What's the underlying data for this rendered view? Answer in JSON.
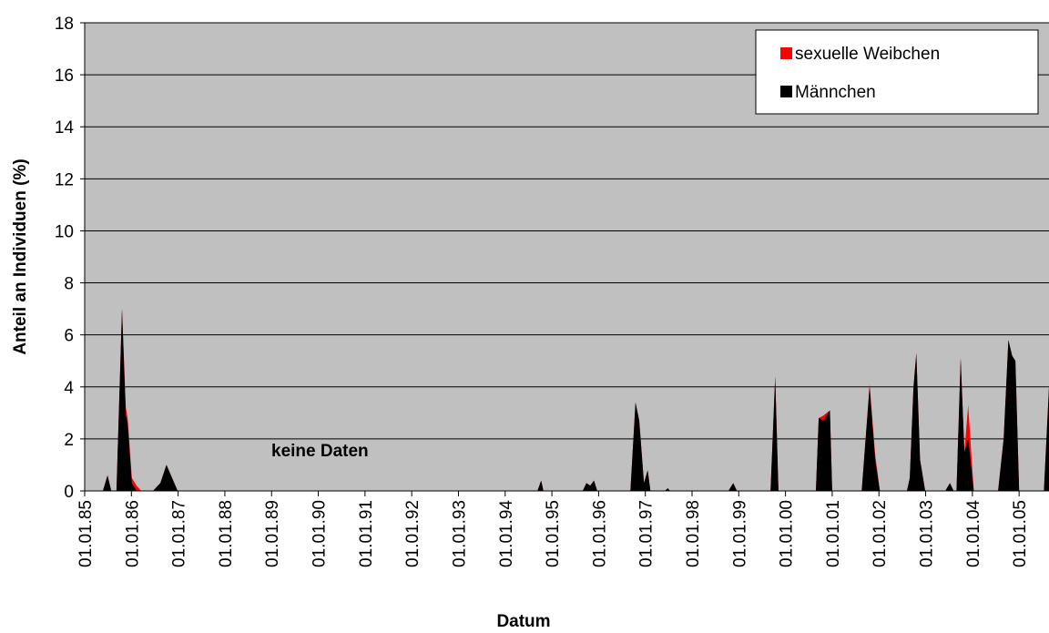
{
  "chart_data": {
    "type": "area",
    "xlabel": "Datum",
    "ylabel": "Anteil an Individuen (%)",
    "annotations": [
      "keine Daten"
    ],
    "x": [
      1985.39,
      1985.49,
      1985.57,
      1985.68,
      1985.8,
      1985.88,
      1985.92,
      1986.01,
      1986.11,
      1986.21,
      1986.46,
      1986.62,
      1986.75,
      1986.99,
      1994.69,
      1994.77,
      1994.82,
      1995.66,
      1995.74,
      1995.82,
      1995.9,
      1995.97,
      1996.68,
      1996.79,
      1996.87,
      1996.97,
      1997.05,
      1997.11,
      1997.42,
      1997.48,
      1997.53,
      1998.78,
      1998.88,
      1998.96,
      1999.68,
      1999.78,
      1999.85,
      2000.65,
      2000.71,
      2000.81,
      2000.95,
      2001.0,
      2001.63,
      2001.8,
      2001.92,
      2002.02,
      2002.6,
      2002.66,
      2002.74,
      2002.8,
      2002.88,
      2002.99,
      2003.42,
      2003.52,
      2003.6,
      2003.66,
      2003.75,
      2003.83,
      2003.91,
      2004.03,
      2004.55,
      2004.67,
      2004.77,
      2004.85,
      2004.92,
      2005.0,
      2005.53,
      2005.64
    ],
    "series": [
      {
        "name": "sexuelle Weibchen",
        "color": "#ff0000",
        "values": [
          0,
          0.6,
          0,
          0,
          7.0,
          3.2,
          2.8,
          0.5,
          0.2,
          0,
          0,
          0.3,
          1.0,
          0,
          0,
          0.4,
          0,
          0,
          0.3,
          0.2,
          0.4,
          0,
          0,
          3.4,
          2.7,
          0.3,
          0.8,
          0,
          0,
          0.1,
          0,
          0,
          0.3,
          0,
          0,
          4.4,
          0,
          0,
          2.8,
          2.9,
          3.1,
          0,
          0,
          4.1,
          1.4,
          0,
          0,
          0.5,
          4.0,
          5.3,
          1.2,
          0,
          0,
          0.3,
          0,
          0,
          5.1,
          1.5,
          3.3,
          0,
          0,
          2.0,
          5.8,
          5.2,
          5.0,
          0,
          0,
          4.0
        ]
      },
      {
        "name": "Männchen",
        "color": "#000000",
        "values": [
          0,
          0.6,
          0,
          0,
          7.0,
          2.9,
          2.6,
          0.3,
          0,
          0,
          0,
          0.3,
          1.0,
          0,
          0,
          0.4,
          0,
          0,
          0.3,
          0.2,
          0.4,
          0,
          0,
          3.4,
          2.7,
          0.3,
          0.8,
          0,
          0,
          0.1,
          0,
          0,
          0.3,
          0,
          0,
          4.4,
          0,
          0,
          2.8,
          2.7,
          3.1,
          0,
          0,
          4.0,
          1.2,
          0,
          0,
          0.5,
          4.0,
          5.3,
          1.2,
          0,
          0,
          0.3,
          0,
          0,
          5.1,
          1.5,
          2.0,
          0,
          0,
          2.0,
          5.8,
          5.2,
          5.0,
          0,
          0,
          4.0
        ]
      }
    ],
    "xlim": [
      1985,
      2005.64
    ],
    "xticks": [
      {
        "value": 1985,
        "label": "01.01.85"
      },
      {
        "value": 1986,
        "label": "01.01.86"
      },
      {
        "value": 1987,
        "label": "01.01.87"
      },
      {
        "value": 1988,
        "label": "01.01.88"
      },
      {
        "value": 1989,
        "label": "01.01.89"
      },
      {
        "value": 1990,
        "label": "01.01.90"
      },
      {
        "value": 1991,
        "label": "01.01.91"
      },
      {
        "value": 1992,
        "label": "01.01.92"
      },
      {
        "value": 1993,
        "label": "01.01.93"
      },
      {
        "value": 1994,
        "label": "01.01.94"
      },
      {
        "value": 1995,
        "label": "01.01.95"
      },
      {
        "value": 1996,
        "label": "01.01.96"
      },
      {
        "value": 1997,
        "label": "01.01.97"
      },
      {
        "value": 1998,
        "label": "01.01.98"
      },
      {
        "value": 1999,
        "label": "01.01.99"
      },
      {
        "value": 2000,
        "label": "01.01.00"
      },
      {
        "value": 2001,
        "label": "01.01.01"
      },
      {
        "value": 2002,
        "label": "01.01.02"
      },
      {
        "value": 2003,
        "label": "01.01.03"
      },
      {
        "value": 2004,
        "label": "01.01.04"
      },
      {
        "value": 2005,
        "label": "01.01.05"
      }
    ],
    "ylim": [
      0,
      18
    ],
    "yticks": [
      0,
      2,
      4,
      6,
      8,
      10,
      12,
      14,
      16,
      18
    ],
    "grid": true,
    "legend": "upper right",
    "background": "#c0c0c0"
  }
}
